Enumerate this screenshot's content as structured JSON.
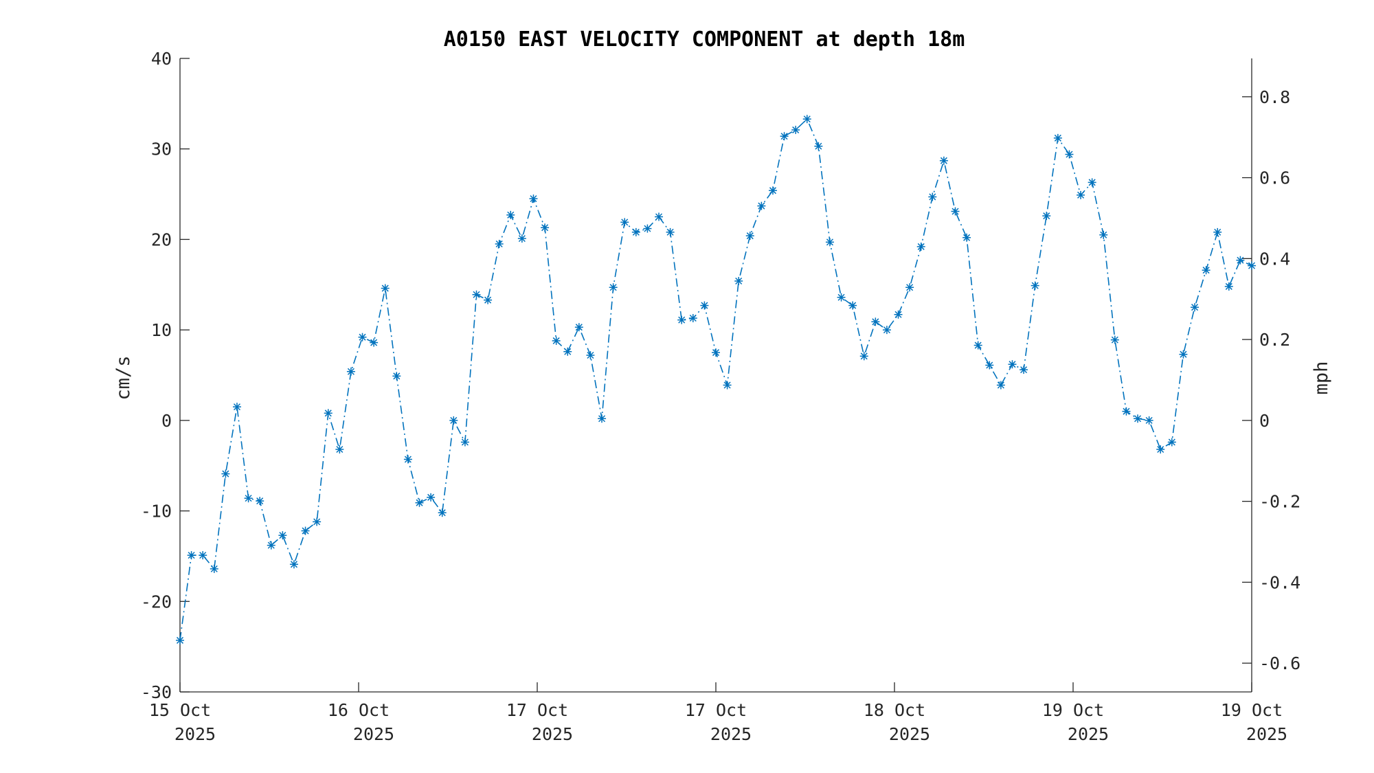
{
  "chart_data": {
    "type": "line",
    "title": "A0150 EAST VELOCITY COMPONENT at depth 18m",
    "ylabel": "cm/s",
    "y2label": "mph",
    "ylim": [
      -30,
      40
    ],
    "y2lim": [
      -0.6711,
      0.8948
    ],
    "yticks": [
      "-30",
      "-20",
      "-10",
      "0",
      "10",
      "20",
      "30",
      "40"
    ],
    "y2ticks": [
      "-0.6",
      "-0.4",
      "-0.2",
      "0",
      "0.2",
      "0.4",
      "0.6",
      "0.8"
    ],
    "x_range": [
      "2025-10-15 00:00",
      "2025-10-19 23:00"
    ],
    "xticks": [
      {
        "day": "15 Oct",
        "year": "2025"
      },
      {
        "day": "16 Oct",
        "year": "2025"
      },
      {
        "day": "17 Oct",
        "year": "2025"
      },
      {
        "day": "17 Oct",
        "year": "2025"
      },
      {
        "day": "18 Oct",
        "year": "2025"
      },
      {
        "day": "19 Oct",
        "year": "2025"
      },
      {
        "day": "19 Oct",
        "year": "2025"
      }
    ],
    "grid": false,
    "legend": "none",
    "color": "#0072bd",
    "marker": "asterisk",
    "line_style": "dash-dot",
    "series": [
      {
        "interval": "1 hour",
        "values": [
          -24.3,
          -14.9,
          -14.9,
          -16.4,
          -5.9,
          1.5,
          -8.6,
          -8.9,
          -13.8,
          -12.7,
          -15.9,
          -12.2,
          -11.2,
          0.8,
          -3.2,
          5.4,
          9.2,
          8.6,
          14.6,
          4.9,
          -4.3,
          -9.1,
          -8.5,
          -10.2,
          0.0,
          -2.4,
          13.9,
          13.3,
          19.5,
          22.7,
          20.1,
          24.5,
          21.3,
          8.8,
          7.6,
          10.3,
          7.2,
          0.2,
          14.7,
          21.9,
          20.8,
          21.2,
          22.5,
          20.8,
          11.1,
          11.3,
          12.7,
          7.5,
          3.9,
          15.4,
          20.4,
          23.7,
          25.4,
          31.4,
          32.1,
          33.3,
          30.3,
          19.7,
          13.6,
          12.7,
          7.1,
          10.9,
          10.0,
          11.7,
          14.7,
          19.2,
          24.7,
          28.7,
          23.1,
          20.2,
          8.3,
          6.1,
          3.9,
          6.2,
          5.6,
          14.9,
          22.6,
          31.2,
          29.4,
          24.9,
          26.3,
          20.5,
          8.9,
          1.0,
          0.2,
          0.0,
          -3.2,
          -2.4,
          7.3,
          12.5,
          16.6,
          20.8,
          14.8,
          17.7,
          17.1
        ]
      }
    ]
  }
}
